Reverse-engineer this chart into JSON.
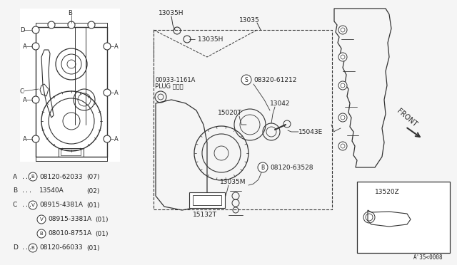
{
  "bg_color": "#f5f5f5",
  "line_color": "#333333",
  "text_color": "#222222",
  "white": "#ffffff",
  "ref_code": "A'35<0008",
  "legend_items": [
    {
      "letter": "A",
      "dots": true,
      "symbol": "B",
      "part": "08120-62033",
      "qty": "(07)"
    },
    {
      "letter": "B",
      "dots": true,
      "symbol": "",
      "part": "13540A",
      "qty": "(02)"
    },
    {
      "letter": "C",
      "dots": true,
      "symbol": "V",
      "part": "08915-4381A",
      "qty": "(01)"
    },
    {
      "letter": "",
      "dots": false,
      "symbol": "V",
      "part": "08915-3381A",
      "qty": "(01)"
    },
    {
      "letter": "",
      "dots": false,
      "symbol": "B",
      "part": "08010-8751A",
      "qty": "(01)"
    },
    {
      "letter": "D",
      "dots": true,
      "symbol": "B",
      "part": "08120-66033",
      "qty": "(01)"
    }
  ]
}
